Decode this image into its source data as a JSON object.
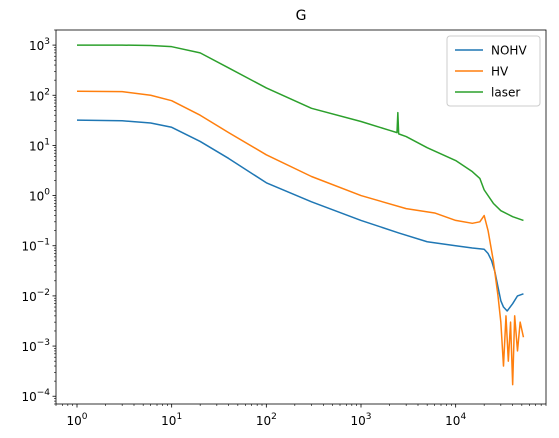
{
  "chart_data": {
    "type": "line",
    "title": "G",
    "xlabel": "",
    "ylabel": "",
    "xscale": "log",
    "yscale": "log",
    "xlim": [
      0.6,
      90000
    ],
    "ylim": [
      7e-05,
      2000
    ],
    "grid": false,
    "legend_position": "top-right",
    "x_ticks": [
      1,
      10,
      100,
      1000,
      10000
    ],
    "x_tick_labels": [
      "10^0",
      "10^1",
      "10^2",
      "10^3",
      "10^4"
    ],
    "y_ticks": [
      0.0001,
      0.001,
      0.01,
      0.1,
      1,
      10,
      100,
      1000
    ],
    "y_tick_labels": [
      "10^-4",
      "10^-3",
      "10^-2",
      "10^-1",
      "10^0",
      "10^1",
      "10^2",
      "10^3"
    ],
    "series": [
      {
        "name": "NOHV",
        "color": "#1f77b4",
        "points": [
          [
            1,
            32
          ],
          [
            3,
            31
          ],
          [
            6,
            28
          ],
          [
            10,
            23
          ],
          [
            20,
            12
          ],
          [
            40,
            5.5
          ],
          [
            100,
            1.8
          ],
          [
            300,
            0.75
          ],
          [
            1000,
            0.32
          ],
          [
            2500,
            0.18
          ],
          [
            5000,
            0.12
          ],
          [
            10000,
            0.1
          ],
          [
            15000,
            0.09
          ],
          [
            20000,
            0.085
          ],
          [
            22000,
            0.07
          ],
          [
            24000,
            0.05
          ],
          [
            26000,
            0.03
          ],
          [
            28000,
            0.015
          ],
          [
            30000,
            0.008
          ],
          [
            32000,
            0.006
          ],
          [
            35000,
            0.005
          ],
          [
            40000,
            0.007
          ],
          [
            45000,
            0.01
          ],
          [
            52000,
            0.011
          ]
        ]
      },
      {
        "name": "HV",
        "color": "#ff7f0e",
        "points": [
          [
            1,
            120
          ],
          [
            3,
            118
          ],
          [
            6,
            100
          ],
          [
            10,
            78
          ],
          [
            20,
            40
          ],
          [
            40,
            18
          ],
          [
            100,
            6.5
          ],
          [
            300,
            2.4
          ],
          [
            1000,
            1.0
          ],
          [
            3000,
            0.55
          ],
          [
            6000,
            0.45
          ],
          [
            10000,
            0.32
          ],
          [
            15000,
            0.28
          ],
          [
            18000,
            0.3
          ],
          [
            20000,
            0.4
          ],
          [
            22000,
            0.2
          ],
          [
            25000,
            0.05
          ],
          [
            28000,
            0.01
          ],
          [
            30000,
            0.003
          ],
          [
            32000,
            0.0004
          ],
          [
            34000,
            0.004
          ],
          [
            36000,
            0.0005
          ],
          [
            38000,
            0.003
          ],
          [
            40000,
            0.00017
          ],
          [
            42000,
            0.004
          ],
          [
            45000,
            0.0008
          ],
          [
            48000,
            0.003
          ],
          [
            52000,
            0.0015
          ]
        ]
      },
      {
        "name": "laser",
        "color": "#2ca02c",
        "points": [
          [
            1,
            1000
          ],
          [
            3,
            1000
          ],
          [
            6,
            980
          ],
          [
            10,
            930
          ],
          [
            20,
            700
          ],
          [
            40,
            350
          ],
          [
            100,
            140
          ],
          [
            300,
            55
          ],
          [
            1000,
            30
          ],
          [
            2000,
            20
          ],
          [
            2400,
            18
          ],
          [
            2450,
            45
          ],
          [
            2500,
            17
          ],
          [
            3000,
            15
          ],
          [
            5000,
            9
          ],
          [
            10000,
            5
          ],
          [
            15000,
            3
          ],
          [
            18000,
            2.2
          ],
          [
            20000,
            1.3
          ],
          [
            25000,
            0.7
          ],
          [
            30000,
            0.5
          ],
          [
            40000,
            0.38
          ],
          [
            52000,
            0.32
          ]
        ]
      }
    ]
  }
}
